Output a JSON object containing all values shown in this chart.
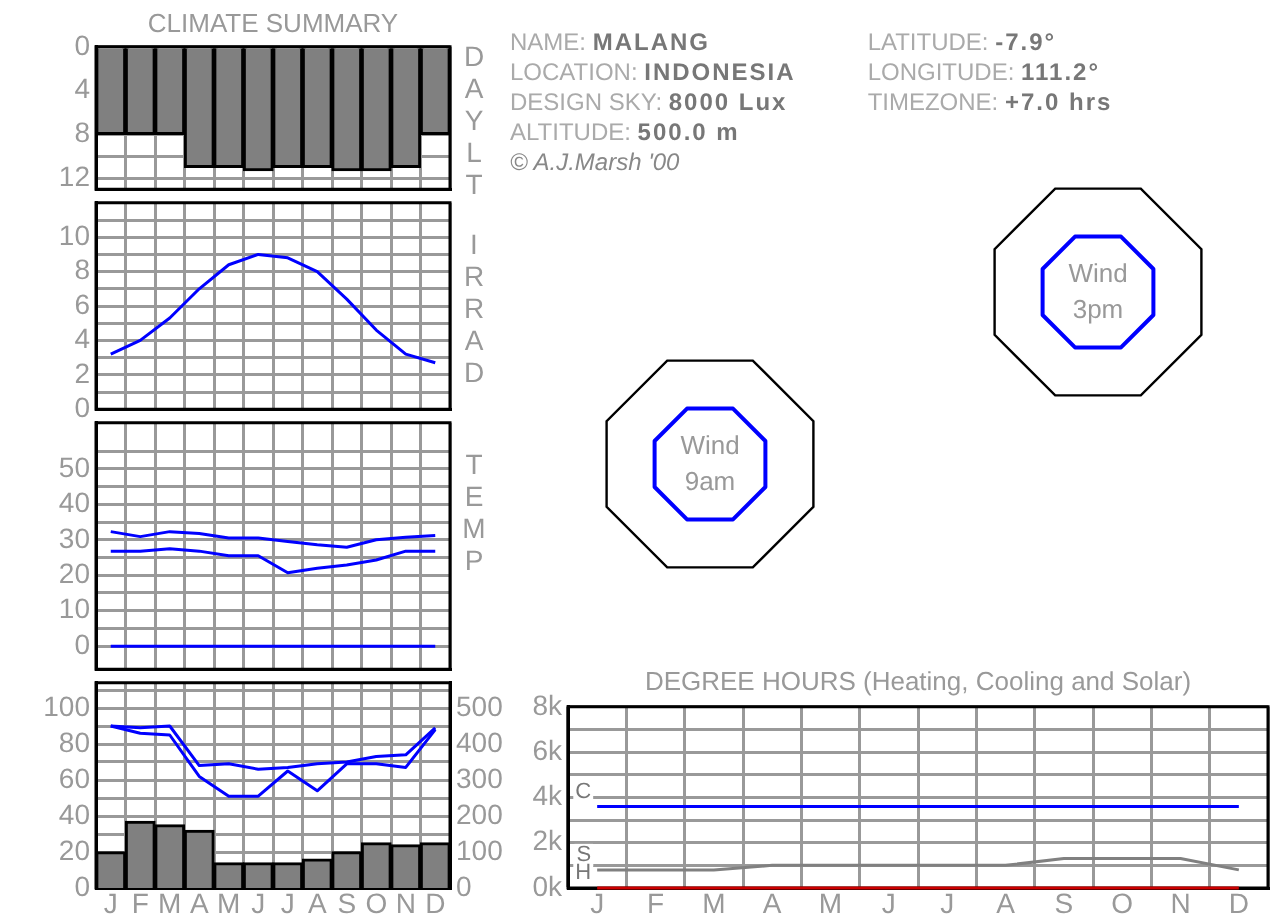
{
  "chart_data": [
    {
      "type": "bar",
      "title": "CLIMATE SUMMARY",
      "ylabel": "DAYLT",
      "categories": [
        null,
        null,
        null,
        null,
        null,
        null,
        null,
        null,
        null,
        null,
        null,
        null
      ],
      "values": [
        8,
        8,
        8,
        11,
        11,
        11.3,
        11,
        11,
        11.3,
        11.3,
        11,
        8
      ],
      "color": "#808080",
      "ylim": [
        13,
        0
      ],
      "yticks": [
        0,
        4,
        8,
        {
          "value": 10,
          "label": null
        },
        12
      ],
      "grid": true,
      "tick_labels": "y"
    },
    {
      "type": "other",
      "annotations": [
        "NAME: MALANG",
        "LOCATION: INDONESIA",
        "DESIGN SKY: 8000 Lux",
        "ALTITUDE: 500.0 m",
        "© A.J.Marsh '00",
        "LATITUDE: -7.9°",
        "LONGITUDE: 111.2°",
        "TIMEZONE: +7.0 hrs"
      ]
    },
    {
      "type": "line",
      "ylabel": "IRRAD",
      "categories": [
        null,
        null,
        null,
        null,
        null,
        null,
        null,
        null,
        null,
        null,
        null,
        null
      ],
      "values": [
        3.2,
        4.0,
        5.3,
        7.0,
        8.4,
        9.0,
        8.8,
        8.0,
        6.4,
        4.6,
        3.2,
        2.7
      ],
      "color": "#0000ff",
      "ylim": [
        0,
        12
      ],
      "yticks": [
        0,
        {
          "value": 1,
          "label": null
        },
        2,
        {
          "value": 3,
          "label": null
        },
        4,
        {
          "value": 5,
          "label": null
        },
        6,
        {
          "value": 7,
          "label": null
        },
        8,
        {
          "value": 9,
          "label": null
        },
        10,
        {
          "value": 11,
          "label": null
        }
      ],
      "grid": true,
      "tick_labels": "y",
      "marker": "none"
    },
    {
      "type": "other",
      "annotations": [
        "Wind",
        "3pm"
      ]
    },
    {
      "type": "other",
      "annotations": [
        "Wind",
        "9am"
      ]
    },
    {
      "type": "line",
      "ylabel": "TEMP",
      "categories": [
        null,
        null,
        null,
        null,
        null,
        null,
        null,
        null,
        null,
        null,
        null,
        null
      ],
      "series": [
        {
          "color": "#0000ff",
          "values": [
            32.3,
            30.9,
            32.3,
            31.8,
            30.5,
            30.5,
            29.5,
            28.6,
            27.9,
            30.0,
            30.7,
            31.2
          ]
        },
        {
          "color": "#0000ff",
          "values": [
            26.8,
            26.8,
            27.5,
            26.8,
            25.5,
            25.5,
            20.7,
            22.0,
            22.9,
            24.3,
            26.8,
            26.8
          ]
        }
      ],
      "ref_lines": [
        {
          "axis": "y",
          "value": 0,
          "color": "#0000ff"
        }
      ],
      "ylim": [
        -6.5,
        63
      ],
      "yticks": [
        0,
        {
          "value": 5,
          "label": null
        },
        10,
        {
          "value": 15,
          "label": null
        },
        20,
        {
          "value": 25,
          "label": null
        },
        30,
        {
          "value": 35,
          "label": null
        },
        40,
        {
          "value": 45,
          "label": null
        },
        50,
        {
          "value": 55,
          "label": null
        }
      ],
      "grid": true,
      "tick_labels": "y",
      "marker": "none"
    },
    {
      "type": "bar",
      "categories": [
        "J",
        "F",
        "M",
        "A",
        "M",
        "J",
        "J",
        "A",
        "S",
        "O",
        "N",
        "D"
      ],
      "series": [
        {
          "type": "bar",
          "axis": "y2",
          "color": "#808080",
          "values": [
            100,
            185,
            175,
            160,
            70,
            70,
            70,
            80,
            100,
            125,
            120,
            125
          ]
        },
        {
          "type": "line",
          "color": "#0000ff",
          "values": [
            90,
            89,
            90,
            68,
            69,
            66,
            67,
            69,
            70,
            73,
            74,
            89
          ]
        },
        {
          "type": "line",
          "color": "#0000ff",
          "values": [
            90,
            86,
            85,
            62,
            51,
            51,
            65,
            54,
            69,
            69,
            67,
            88
          ]
        }
      ],
      "ylim": [
        0,
        114
      ],
      "yticks": [
        0,
        20,
        {
          "value": 30,
          "label": null
        },
        40,
        {
          "value": 50,
          "label": null
        },
        60,
        {
          "value": 70,
          "label": null
        },
        80,
        {
          "value": 90,
          "label": null
        },
        100,
        {
          "value": 110,
          "label": null
        }
      ],
      "y2lim": [
        0,
        570
      ],
      "y2ticks": [
        0,
        100,
        200,
        300,
        400,
        500
      ],
      "grid": true,
      "marker": "none"
    },
    {
      "type": "line",
      "title": "DEGREE HOURS (Heating, Cooling and Solar)",
      "categories": [
        "J",
        "F",
        "M",
        "A",
        "M",
        "J",
        "J",
        "A",
        "S",
        "O",
        "N",
        "D"
      ],
      "series": [
        {
          "name": "C",
          "color": "#0000ff",
          "values": [
            3.6,
            3.6,
            3.6,
            3.6,
            3.6,
            3.6,
            3.6,
            3.6,
            3.6,
            3.6,
            3.6,
            3.6
          ]
        },
        {
          "name": "S",
          "color": "#808080",
          "values": [
            0.8,
            0.8,
            0.8,
            1.0,
            1.0,
            1.0,
            1.0,
            1.0,
            1.3,
            1.3,
            1.3,
            0.8
          ]
        },
        {
          "name": "H",
          "color": "#cc0000",
          "values": [
            0,
            0,
            0,
            0,
            0,
            0,
            0,
            0,
            0,
            0,
            0,
            0
          ]
        }
      ],
      "ylim": [
        0,
        8
      ],
      "yticks": [
        {
          "value": 0,
          "label": "0k"
        },
        {
          "value": 1,
          "label": null
        },
        {
          "value": 2,
          "label": "2k"
        },
        {
          "value": 3,
          "label": null
        },
        {
          "value": 4,
          "label": "4k"
        },
        {
          "value": 5,
          "label": null
        },
        {
          "value": 6,
          "label": "6k"
        },
        {
          "value": 7,
          "label": null
        },
        {
          "value": 8,
          "label": "8k"
        }
      ],
      "grid": true,
      "marker": "none"
    }
  ]
}
